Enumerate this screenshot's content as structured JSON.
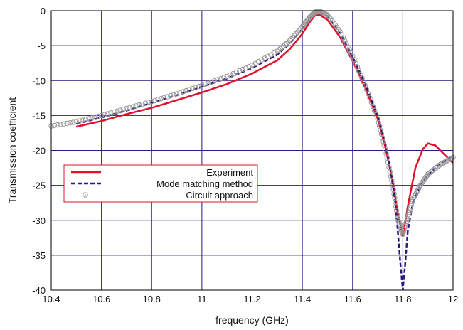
{
  "chart_data": {
    "type": "line",
    "title": "",
    "xlabel": "frequency (GHz)",
    "ylabel": "Transmission coefficient",
    "xlim": [
      10.4,
      12.0
    ],
    "ylim": [
      -40,
      0
    ],
    "xticks": [
      "10.4",
      "10.6",
      "10.8",
      "11",
      "11.2",
      "11.4",
      "11.6",
      "11.8",
      "12"
    ],
    "yticks": [
      "0",
      "-5",
      "-10",
      "-15",
      "-20",
      "-25",
      "-30",
      "-35",
      "-40"
    ],
    "grid": true,
    "grid_color": "#2a1a80",
    "legend_position": "center-left",
    "series": [
      {
        "name": "Experiment",
        "style": "solid",
        "color": "#e0102a",
        "points": [
          [
            10.5,
            -16.6
          ],
          [
            10.6,
            -15.8
          ],
          [
            10.7,
            -14.8
          ],
          [
            10.8,
            -13.9
          ],
          [
            10.9,
            -12.8
          ],
          [
            11.0,
            -11.7
          ],
          [
            11.1,
            -10.5
          ],
          [
            11.2,
            -9.0
          ],
          [
            11.3,
            -7.1
          ],
          [
            11.35,
            -5.5
          ],
          [
            11.4,
            -3.3
          ],
          [
            11.43,
            -1.6
          ],
          [
            11.45,
            -0.7
          ],
          [
            11.47,
            -0.6
          ],
          [
            11.5,
            -1.3
          ],
          [
            11.55,
            -3.8
          ],
          [
            11.6,
            -7.2
          ],
          [
            11.65,
            -11.0
          ],
          [
            11.7,
            -15.5
          ],
          [
            11.73,
            -19.5
          ],
          [
            11.76,
            -24.5
          ],
          [
            11.78,
            -29.0
          ],
          [
            11.8,
            -32.3
          ],
          [
            11.82,
            -28.0
          ],
          [
            11.85,
            -22.5
          ],
          [
            11.88,
            -19.8
          ],
          [
            11.9,
            -19.0
          ],
          [
            11.93,
            -19.3
          ],
          [
            11.96,
            -20.4
          ],
          [
            12.0,
            -21.8
          ]
        ]
      },
      {
        "name": "Mode matching method",
        "style": "dashed",
        "color": "#2a1880",
        "points": [
          [
            10.5,
            -16.2
          ],
          [
            10.6,
            -15.3
          ],
          [
            10.7,
            -14.3
          ],
          [
            10.8,
            -13.2
          ],
          [
            10.9,
            -12.1
          ],
          [
            11.0,
            -10.9
          ],
          [
            11.1,
            -9.7
          ],
          [
            11.2,
            -8.2
          ],
          [
            11.3,
            -6.3
          ],
          [
            11.35,
            -4.7
          ],
          [
            11.4,
            -2.6
          ],
          [
            11.43,
            -1.1
          ],
          [
            11.45,
            -0.4
          ],
          [
            11.47,
            -0.2
          ],
          [
            11.5,
            -0.8
          ],
          [
            11.55,
            -3.2
          ],
          [
            11.6,
            -6.6
          ],
          [
            11.65,
            -10.4
          ],
          [
            11.7,
            -15.0
          ],
          [
            11.73,
            -19.0
          ],
          [
            11.75,
            -22.5
          ],
          [
            11.77,
            -27.5
          ],
          [
            11.78,
            -31.5
          ],
          [
            11.79,
            -36.0
          ],
          [
            11.8,
            -40.0
          ],
          [
            11.81,
            -36.0
          ],
          [
            11.82,
            -31.5
          ],
          [
            11.84,
            -27.5
          ],
          [
            11.87,
            -25.0
          ],
          [
            11.9,
            -23.5
          ],
          [
            11.95,
            -21.9
          ],
          [
            12.0,
            -20.7
          ]
        ]
      },
      {
        "name": "Circuit approach",
        "style": "markers",
        "color": "#999999",
        "points": [
          [
            10.4,
            -16.5
          ],
          [
            10.5,
            -15.9
          ],
          [
            10.6,
            -15.0
          ],
          [
            10.7,
            -14.0
          ],
          [
            10.8,
            -13.0
          ],
          [
            10.9,
            -11.9
          ],
          [
            11.0,
            -10.7
          ],
          [
            11.1,
            -9.4
          ],
          [
            11.2,
            -7.8
          ],
          [
            11.3,
            -5.8
          ],
          [
            11.35,
            -4.3
          ],
          [
            11.4,
            -2.3
          ],
          [
            11.43,
            -0.9
          ],
          [
            11.45,
            -0.2
          ],
          [
            11.47,
            -0.1
          ],
          [
            11.5,
            -0.6
          ],
          [
            11.55,
            -3.0
          ],
          [
            11.6,
            -6.5
          ],
          [
            11.65,
            -10.7
          ],
          [
            11.7,
            -15.5
          ],
          [
            11.73,
            -19.8
          ],
          [
            11.76,
            -25.0
          ],
          [
            11.78,
            -29.8
          ],
          [
            11.8,
            -32.0
          ],
          [
            11.82,
            -29.5
          ],
          [
            11.84,
            -27.0
          ],
          [
            11.87,
            -25.0
          ],
          [
            11.9,
            -23.4
          ],
          [
            11.95,
            -22.0
          ],
          [
            12.0,
            -21.0
          ]
        ]
      }
    ]
  }
}
